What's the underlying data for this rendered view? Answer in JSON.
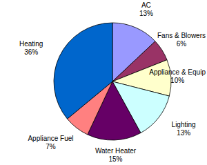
{
  "chart_data": {
    "type": "pie",
    "categories": [
      "AC",
      "Fans & Blowers",
      "Appliance & Equip",
      "Lighting",
      "Water Heater",
      "Appliance Fuel",
      "Heating"
    ],
    "values": [
      13,
      6,
      10,
      13,
      15,
      7,
      36
    ],
    "value_labels": [
      "13%",
      "6%",
      "10%",
      "13%",
      "15%",
      "7%",
      "36%"
    ],
    "colors": [
      "#9999ff",
      "#993366",
      "#ffffcc",
      "#ccffff",
      "#660066",
      "#ff8080",
      "#0066cc"
    ],
    "data_labels": true
  }
}
